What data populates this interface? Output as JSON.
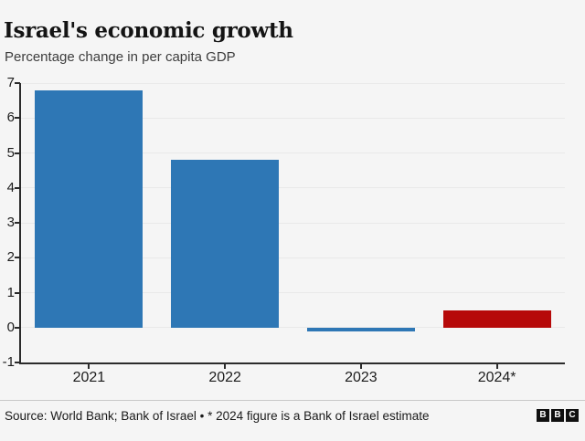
{
  "header": {
    "title": "Israel's economic growth",
    "subtitle": "Percentage change in per capita GDP"
  },
  "chart_data": {
    "type": "bar",
    "title": "Israel's economic growth",
    "subtitle": "Percentage change in per capita GDP",
    "categories": [
      "2021",
      "2022",
      "2023",
      "2024*"
    ],
    "values": [
      6.8,
      4.8,
      -0.1,
      0.5
    ],
    "bar_colors": [
      "#2e77b5",
      "#2e77b5",
      "#2e77b5",
      "#b60909"
    ],
    "xlabel": "",
    "ylabel": "",
    "ylim": [
      -1,
      7
    ],
    "yticks": [
      -1,
      0,
      1,
      2,
      3,
      4,
      5,
      6,
      7
    ],
    "grid": "horizontal-only",
    "legend": "none"
  },
  "colors": {
    "background": "#f5f5f5",
    "gridline": "#e9e9e9",
    "axis": "#2b2b2b",
    "bar_blue": "#2e77b5",
    "bar_red": "#b60909"
  },
  "footer": {
    "source": "Source: World Bank; Bank of Israel • * 2024 figure is a Bank of Israel estimate",
    "logo_letters": [
      "B",
      "B",
      "C"
    ]
  }
}
